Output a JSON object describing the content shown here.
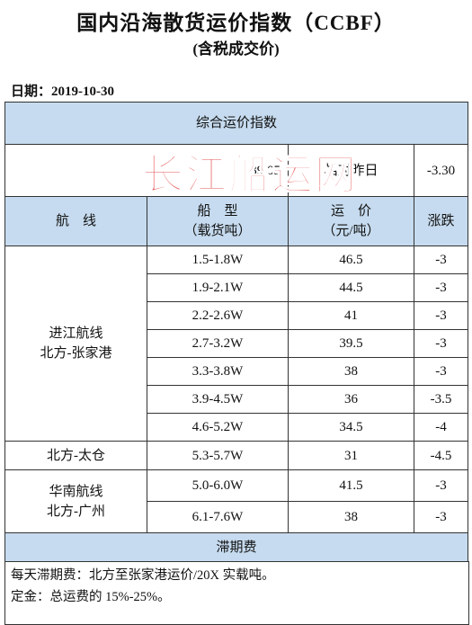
{
  "header": {
    "title": "国内沿海散货运价指数（CCBF）",
    "subtitle": "(含税成交价)",
    "date": "日期：2019-10-30"
  },
  "table": {
    "section_title": "综合运价指数",
    "index_value": "39.05",
    "change_label": "相对昨日",
    "index_change": "-3.30",
    "columns": [
      "航　线",
      "船　型\n（载货吨）",
      "运　价\n（元/吨）",
      "涨跌"
    ],
    "groups": [
      {
        "route": "进江航线\n北方-张家港",
        "rows": [
          [
            "1.5-1.8W",
            "46.5",
            "-3"
          ],
          [
            "1.9-2.1W",
            "44.5",
            "-3"
          ],
          [
            "2.2-2.6W",
            "41",
            "-3"
          ],
          [
            "2.7-3.2W",
            "39.5",
            "-3"
          ],
          [
            "3.3-3.8W",
            "38",
            "-3"
          ],
          [
            "3.9-4.5W",
            "36",
            "-3.5"
          ],
          [
            "4.6-5.2W",
            "34.5",
            "-4"
          ]
        ]
      },
      {
        "route": "北方-太仓",
        "rows": [
          [
            "5.3-5.7W",
            "31",
            "-4.5"
          ]
        ]
      },
      {
        "route": "华南航线\n北方-广州",
        "rows": [
          [
            "5.0-6.0W",
            "41.5",
            "-3"
          ],
          [
            "6.1-7.6W",
            "38",
            "-3"
          ]
        ]
      }
    ],
    "demurrage_title": "滞期费"
  },
  "notes": [
    "每天滞期费：北方至张家港运价/20X 实载吨。",
    "定金：总运费的 15%-25%。"
  ],
  "watermark": "长江船运网"
}
